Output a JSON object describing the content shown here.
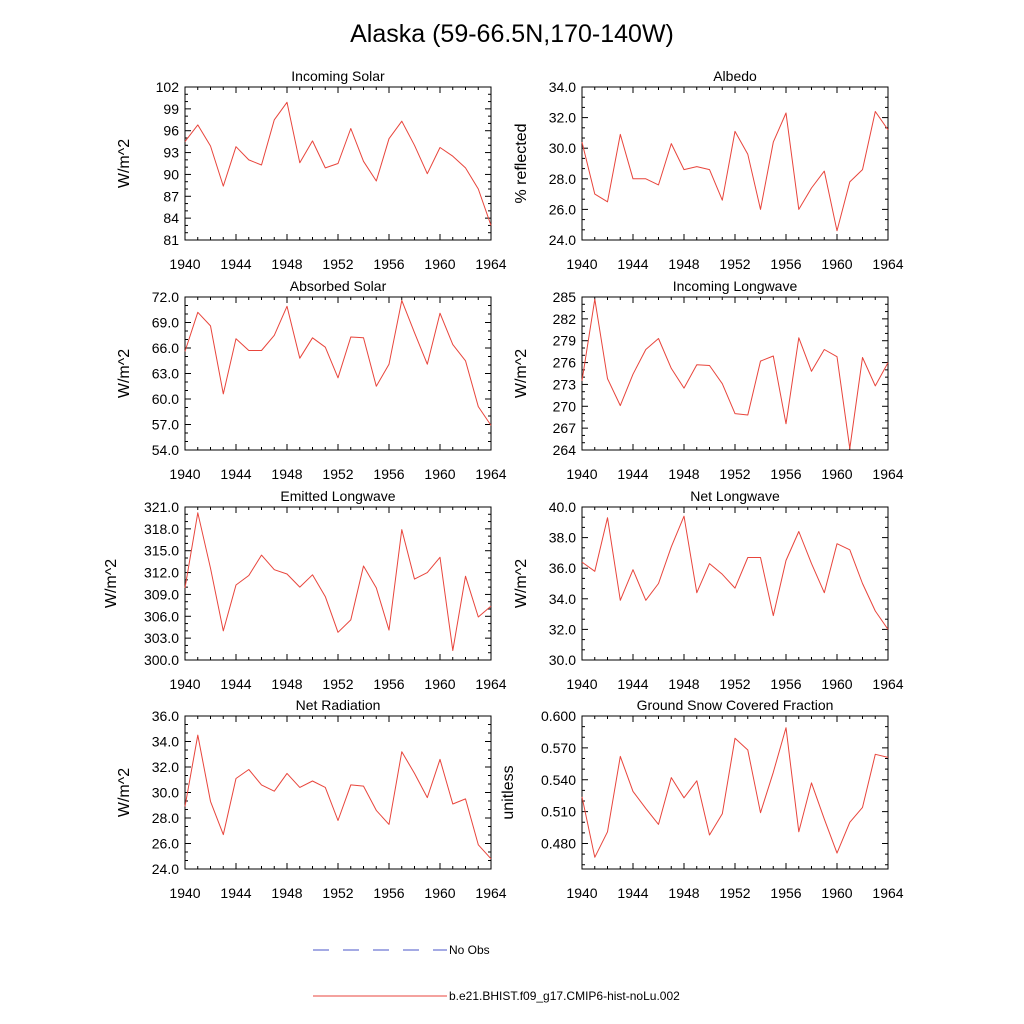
{
  "page": {
    "title": "Alaska (59-66.5N,170-140W)"
  },
  "legend": {
    "items": [
      {
        "label": "No Obs",
        "color": "#4a56c8",
        "dash": true
      },
      {
        "label": "b.e21.BHIST.f09_g17.CMIP6-hist-noLu.002",
        "color": "#e8453c",
        "dash": false
      }
    ]
  },
  "chart_data": [
    {
      "type": "line",
      "title": "Incoming Solar",
      "ylabel": "W/m^2",
      "xlim": [
        1940,
        1964
      ],
      "ylim": [
        81,
        102
      ],
      "yticks": [
        "81",
        "84",
        "87",
        "90",
        "93",
        "96",
        "99",
        "102"
      ],
      "ytick_values": [
        81,
        84,
        87,
        90,
        93,
        96,
        99,
        102
      ],
      "xticks": [
        "1940",
        "1944",
        "1948",
        "1952",
        "1956",
        "1960",
        "1964"
      ],
      "x": [
        1940,
        1941,
        1942,
        1943,
        1944,
        1945,
        1946,
        1947,
        1948,
        1949,
        1950,
        1951,
        1952,
        1953,
        1954,
        1955,
        1956,
        1957,
        1958,
        1959,
        1960,
        1961,
        1962,
        1963,
        1964
      ],
      "series": [
        {
          "color": "#e8453c",
          "values": [
            94.5,
            96.8,
            93.9,
            88.4,
            93.8,
            92.0,
            91.3,
            97.5,
            99.9,
            91.6,
            94.6,
            90.9,
            91.5,
            96.3,
            91.8,
            89.1,
            94.9,
            97.3,
            94.0,
            90.1,
            93.7,
            92.5,
            90.9,
            88.0,
            83.0
          ]
        }
      ]
    },
    {
      "type": "line",
      "title": "Albedo",
      "ylabel": "% reflected",
      "xlim": [
        1940,
        1964
      ],
      "ylim": [
        24,
        34
      ],
      "yticks": [
        "24.0",
        "26.0",
        "28.0",
        "30.0",
        "32.0",
        "34.0"
      ],
      "ytick_values": [
        24,
        26,
        28,
        30,
        32,
        34
      ],
      "xticks": [
        "1940",
        "1944",
        "1948",
        "1952",
        "1956",
        "1960",
        "1964"
      ],
      "x": [
        1940,
        1941,
        1942,
        1943,
        1944,
        1945,
        1946,
        1947,
        1948,
        1949,
        1950,
        1951,
        1952,
        1953,
        1954,
        1955,
        1956,
        1957,
        1958,
        1959,
        1960,
        1961,
        1962,
        1963,
        1964
      ],
      "series": [
        {
          "color": "#e8453c",
          "values": [
            30.4,
            27.0,
            26.5,
            30.9,
            28.0,
            28.0,
            27.6,
            30.3,
            28.6,
            28.8,
            28.6,
            26.6,
            31.1,
            29.6,
            26.0,
            30.4,
            32.3,
            26.0,
            27.4,
            28.5,
            24.6,
            27.8,
            28.6,
            32.4,
            31.2
          ]
        }
      ]
    },
    {
      "type": "line",
      "title": "Absorbed Solar",
      "ylabel": "W/m^2",
      "xlim": [
        1940,
        1964
      ],
      "ylim": [
        54,
        72
      ],
      "yticks": [
        "54.0",
        "57.0",
        "60.0",
        "63.0",
        "66.0",
        "69.0",
        "72.0"
      ],
      "ytick_values": [
        54,
        57,
        60,
        63,
        66,
        69,
        72
      ],
      "xticks": [
        "1940",
        "1944",
        "1948",
        "1952",
        "1956",
        "1960",
        "1964"
      ],
      "x": [
        1940,
        1941,
        1942,
        1943,
        1944,
        1945,
        1946,
        1947,
        1948,
        1949,
        1950,
        1951,
        1952,
        1953,
        1954,
        1955,
        1956,
        1957,
        1958,
        1959,
        1960,
        1961,
        1962,
        1963,
        1964
      ],
      "series": [
        {
          "color": "#e8453c",
          "values": [
            65.6,
            70.2,
            68.6,
            60.6,
            67.1,
            65.7,
            65.7,
            67.5,
            70.9,
            64.8,
            67.2,
            66.1,
            62.5,
            67.3,
            67.2,
            61.5,
            64.1,
            71.6,
            67.8,
            64.1,
            70.1,
            66.4,
            64.5,
            59.1,
            56.9
          ]
        }
      ]
    },
    {
      "type": "line",
      "title": "Incoming Longwave",
      "ylabel": "W/m^2",
      "xlim": [
        1940,
        1964
      ],
      "ylim": [
        264,
        285
      ],
      "yticks": [
        "264",
        "267",
        "270",
        "273",
        "276",
        "279",
        "282",
        "285"
      ],
      "ytick_values": [
        264,
        267,
        270,
        273,
        276,
        279,
        282,
        285
      ],
      "xticks": [
        "1940",
        "1944",
        "1948",
        "1952",
        "1956",
        "1960",
        "1964"
      ],
      "x": [
        1940,
        1941,
        1942,
        1943,
        1944,
        1945,
        1946,
        1947,
        1948,
        1949,
        1950,
        1951,
        1952,
        1953,
        1954,
        1955,
        1956,
        1957,
        1958,
        1959,
        1960,
        1961,
        1962,
        1963,
        1964
      ],
      "series": [
        {
          "color": "#e8453c",
          "values": [
            273.5,
            284.7,
            273.8,
            270.1,
            274.4,
            277.8,
            279.3,
            275.2,
            272.5,
            275.7,
            275.6,
            273.1,
            269.0,
            268.8,
            276.2,
            276.9,
            267.6,
            279.4,
            274.8,
            277.8,
            276.8,
            264.2,
            276.7,
            272.8,
            276.0
          ]
        }
      ]
    },
    {
      "type": "line",
      "title": "Emitted Longwave",
      "ylabel": "W/m^2",
      "xlim": [
        1940,
        1964
      ],
      "ylim": [
        300,
        321
      ],
      "yticks": [
        "300.0",
        "303.0",
        "306.0",
        "309.0",
        "312.0",
        "315.0",
        "318.0",
        "321.0"
      ],
      "ytick_values": [
        300,
        303,
        306,
        309,
        312,
        315,
        318,
        321
      ],
      "xticks": [
        "1940",
        "1944",
        "1948",
        "1952",
        "1956",
        "1960",
        "1964"
      ],
      "x": [
        1940,
        1941,
        1942,
        1943,
        1944,
        1945,
        1946,
        1947,
        1948,
        1949,
        1950,
        1951,
        1952,
        1953,
        1954,
        1955,
        1956,
        1957,
        1958,
        1959,
        1960,
        1961,
        1962,
        1963,
        1964
      ],
      "series": [
        {
          "color": "#e8453c",
          "values": [
            309.9,
            320.2,
            312.6,
            304.0,
            310.3,
            311.6,
            314.4,
            312.4,
            311.8,
            310.0,
            311.7,
            308.7,
            303.8,
            305.5,
            312.9,
            309.9,
            304.1,
            317.9,
            311.1,
            312.0,
            314.1,
            301.3,
            311.5,
            305.9,
            307.4
          ]
        }
      ]
    },
    {
      "type": "line",
      "title": "Net Longwave",
      "ylabel": "W/m^2",
      "xlim": [
        1940,
        1964
      ],
      "ylim": [
        30,
        40
      ],
      "yticks": [
        "30.0",
        "32.0",
        "34.0",
        "36.0",
        "38.0",
        "40.0"
      ],
      "ytick_values": [
        30,
        32,
        34,
        36,
        38,
        40
      ],
      "xticks": [
        "1940",
        "1944",
        "1948",
        "1952",
        "1956",
        "1960",
        "1964"
      ],
      "x": [
        1940,
        1941,
        1942,
        1943,
        1944,
        1945,
        1946,
        1947,
        1948,
        1949,
        1950,
        1951,
        1952,
        1953,
        1954,
        1955,
        1956,
        1957,
        1958,
        1959,
        1960,
        1961,
        1962,
        1963,
        1964
      ],
      "series": [
        {
          "color": "#e8453c",
          "values": [
            36.4,
            35.8,
            39.3,
            33.9,
            35.9,
            33.9,
            35.0,
            37.4,
            39.4,
            34.4,
            36.3,
            35.6,
            34.7,
            36.7,
            36.7,
            32.9,
            36.5,
            38.4,
            36.3,
            34.4,
            37.6,
            37.2,
            35.0,
            33.2,
            32.0
          ]
        }
      ]
    },
    {
      "type": "line",
      "title": "Net Radiation",
      "ylabel": "W/m^2",
      "xlim": [
        1940,
        1964
      ],
      "ylim": [
        24,
        36
      ],
      "yticks": [
        "24.0",
        "26.0",
        "28.0",
        "30.0",
        "32.0",
        "34.0",
        "36.0"
      ],
      "ytick_values": [
        24,
        26,
        28,
        30,
        32,
        34,
        36
      ],
      "xticks": [
        "1940",
        "1944",
        "1948",
        "1952",
        "1956",
        "1960",
        "1964"
      ],
      "x": [
        1940,
        1941,
        1942,
        1943,
        1944,
        1945,
        1946,
        1947,
        1948,
        1949,
        1950,
        1951,
        1952,
        1953,
        1954,
        1955,
        1956,
        1957,
        1958,
        1959,
        1960,
        1961,
        1962,
        1963,
        1964
      ],
      "series": [
        {
          "color": "#e8453c",
          "values": [
            28.9,
            34.5,
            29.3,
            26.7,
            31.1,
            31.8,
            30.6,
            30.1,
            31.5,
            30.4,
            30.9,
            30.4,
            27.8,
            30.6,
            30.5,
            28.6,
            27.5,
            33.2,
            31.5,
            29.6,
            32.6,
            29.1,
            29.5,
            25.9,
            24.8
          ]
        }
      ]
    },
    {
      "type": "line",
      "title": "Ground Snow Covered Fraction",
      "ylabel": "unitless",
      "xlim": [
        1940,
        1964
      ],
      "ylim": [
        0.456,
        0.6
      ],
      "yticks": [
        "0.480",
        "0.510",
        "0.540",
        "0.570",
        "0.600"
      ],
      "ytick_values": [
        0.48,
        0.51,
        0.54,
        0.57,
        0.6
      ],
      "xticks": [
        "1940",
        "1944",
        "1948",
        "1952",
        "1956",
        "1960",
        "1964"
      ],
      "x": [
        1940,
        1941,
        1942,
        1943,
        1944,
        1945,
        1946,
        1947,
        1948,
        1949,
        1950,
        1951,
        1952,
        1953,
        1954,
        1955,
        1956,
        1957,
        1958,
        1959,
        1960,
        1961,
        1962,
        1963,
        1964
      ],
      "series": [
        {
          "color": "#e8453c",
          "values": [
            0.524,
            0.467,
            0.491,
            0.562,
            0.529,
            0.513,
            0.498,
            0.542,
            0.523,
            0.539,
            0.488,
            0.508,
            0.579,
            0.568,
            0.509,
            0.547,
            0.589,
            0.491,
            0.537,
            0.503,
            0.471,
            0.5,
            0.514,
            0.564,
            0.561
          ]
        }
      ]
    }
  ]
}
